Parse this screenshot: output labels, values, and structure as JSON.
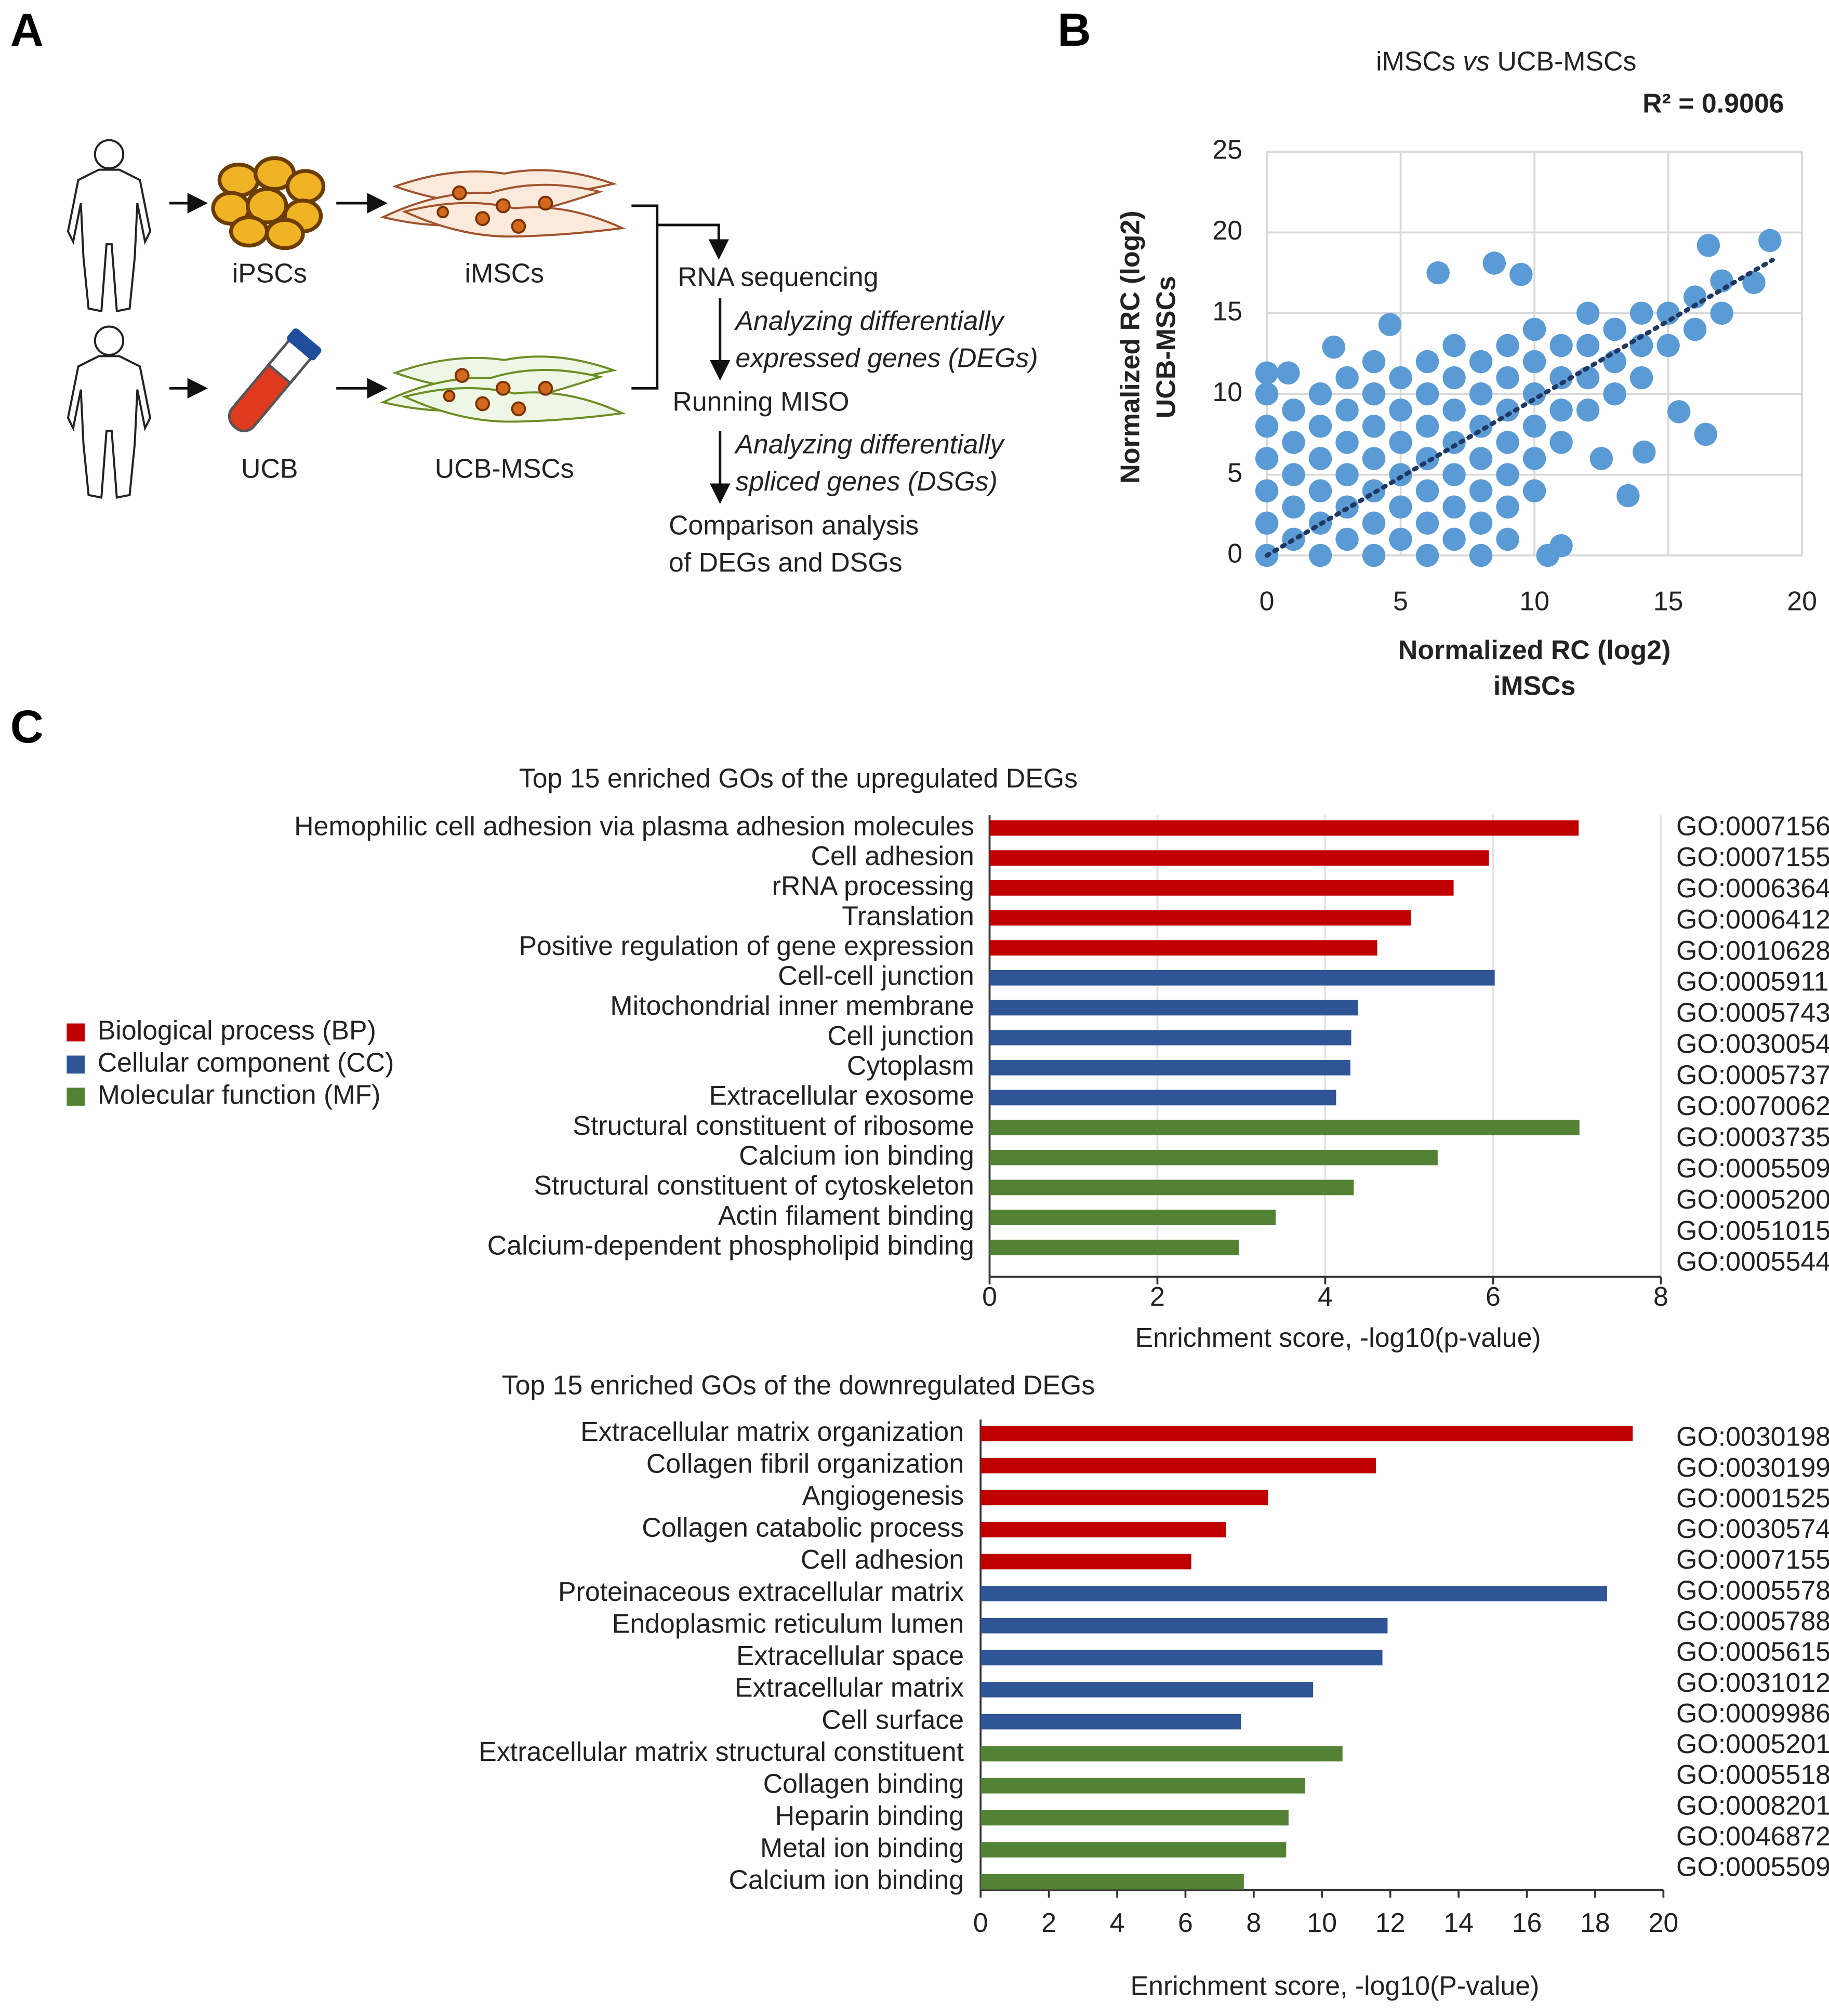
{
  "panel_labels": [
    "A",
    "B",
    "C"
  ],
  "diagram": {
    "sources": [
      "iPSCs",
      "iMSCs",
      "UCB",
      "UCB-MSCs"
    ],
    "pipeline": [
      "RNA sequencing",
      "Analyzing differentially",
      "expressed genes (DEGs)",
      "Running MISO",
      "Analyzing differentially",
      "spliced genes (DSGs)",
      "Comparison analysis",
      "of DEGs and DSGs"
    ]
  },
  "chart_data": [
    {
      "type": "scatter",
      "title": [
        "iMSCs",
        "vs",
        "UCB-MSCs"
      ],
      "annotation": "R² = 0.9006",
      "xlabel": [
        "Normalized RC (log2)",
        "iMSCs"
      ],
      "ylabel": [
        "Normalized RC (log2)",
        "UCB-MSCs"
      ],
      "xlim": [
        0,
        20
      ],
      "xticks": [
        0,
        5,
        10,
        15,
        20
      ],
      "ylim": [
        0,
        25
      ],
      "yticks": [
        0,
        5,
        10,
        15,
        20,
        25
      ],
      "grid": true,
      "color": "#5b9bd5",
      "x": [
        0,
        0,
        0,
        0,
        0,
        0,
        1,
        1,
        1,
        1,
        1,
        2,
        2,
        2,
        2,
        2,
        2,
        3,
        3,
        3,
        3,
        3,
        3,
        4,
        4,
        4,
        4,
        4,
        4,
        4,
        5,
        5,
        5,
        5,
        5,
        5,
        6,
        6,
        6,
        6,
        6,
        6,
        6,
        7,
        7,
        7,
        7,
        7,
        7,
        7,
        8,
        8,
        8,
        8,
        8,
        8,
        8,
        9,
        9,
        9,
        9,
        9,
        9,
        9,
        10,
        10,
        10,
        10,
        10,
        10,
        11,
        11,
        11,
        11,
        12,
        12,
        12,
        12,
        13,
        13,
        13,
        14,
        14,
        14,
        15,
        15,
        16,
        16,
        17,
        17,
        6.4,
        8.5,
        9.5,
        16.5,
        18.8,
        18.2,
        15.4,
        16.4,
        14.1,
        13.5,
        12.5,
        11,
        10.5,
        0,
        0.8,
        4.6,
        2.5
      ],
      "y": [
        0,
        2,
        4,
        6,
        8,
        10,
        1,
        3,
        5,
        7,
        9,
        0,
        2,
        4,
        6,
        8,
        10,
        1,
        3,
        5,
        7,
        9,
        11,
        0,
        2,
        4,
        6,
        8,
        10,
        12,
        1,
        3,
        5,
        7,
        9,
        11,
        0,
        2,
        4,
        6,
        8,
        10,
        12,
        1,
        3,
        5,
        7,
        9,
        11,
        13,
        0,
        2,
        4,
        6,
        8,
        10,
        12,
        1,
        3,
        5,
        7,
        9,
        11,
        13,
        4,
        6,
        8,
        10,
        12,
        14,
        7,
        9,
        11,
        13,
        9,
        11,
        13,
        15,
        10,
        12,
        14,
        11,
        13,
        15,
        13,
        15,
        14,
        16,
        15,
        17,
        17.5,
        18.1,
        17.4,
        19.2,
        19.5,
        16.9,
        8.9,
        7.5,
        6.4,
        3.7,
        6,
        0.6,
        0,
        11.3,
        11.3,
        14.3,
        12.9
      ],
      "trendline": {
        "x": [
          0,
          18.9
        ],
        "y": [
          0,
          18.3
        ],
        "color": "#1f3864"
      }
    },
    {
      "type": "bar",
      "title": "Top 15 enriched GOs of the upregulated DEGs",
      "xlabel": "Enrichment score, -log10(p-value)",
      "categories": [
        "Hemophilic cell adhesion via plasma adhesion molecules",
        "Cell adhesion",
        "rRNA processing",
        "Translation",
        "Positive regulation of gene expression",
        "Cell-cell junction",
        "Mitochondrial inner membrane",
        "Cell junction",
        "Cytoplasm",
        "Extracellular exosome",
        "Structural constituent of ribosome",
        "Calcium ion binding",
        "Structural constituent of cytoskeleton",
        "Actin filament binding",
        "Calcium-dependent phospholipid binding"
      ],
      "go_ids": [
        "GO:0007156",
        "GO:0007155",
        "GO:0006364",
        "GO:0006412",
        "GO:0010628",
        "GO:0005911",
        "GO:0005743",
        "GO:0030054",
        "GO:0005737",
        "GO:0070062",
        "GO:0003735",
        "GO:0005509",
        "GO:0005200",
        "GO:0051015",
        "GO:0005544"
      ],
      "series": [
        {
          "name": "Biological process (BP)",
          "color": "#c00000",
          "values": [
            7.02,
            5.95,
            5.53,
            5.02,
            4.62,
            null,
            null,
            null,
            null,
            null,
            null,
            null,
            null,
            null,
            null
          ]
        },
        {
          "name": "Cellular component (CC)",
          "color": "#2f5597",
          "values": [
            null,
            null,
            null,
            null,
            null,
            6.02,
            4.39,
            4.31,
            4.3,
            4.13,
            null,
            null,
            null,
            null,
            null
          ]
        },
        {
          "name": "Molecular function (MF)",
          "color": "#548235",
          "values": [
            null,
            null,
            null,
            null,
            null,
            null,
            null,
            null,
            null,
            null,
            7.03,
            5.34,
            4.34,
            3.41,
            2.97
          ]
        }
      ],
      "xlim": [
        0,
        8
      ],
      "xticks": [
        0,
        2,
        4,
        6,
        8
      ],
      "grid": true
    },
    {
      "type": "bar",
      "title": "Top 15 enriched GOs of the downregulated DEGs",
      "xlabel": "Enrichment score, -log10(P-value)",
      "categories": [
        "Extracellular matrix organization",
        "Collagen fibril organization",
        "Angiogenesis",
        "Collagen catabolic process",
        "Cell adhesion",
        "Proteinaceous extracellular matrix",
        "Endoplasmic reticulum lumen",
        "Extracellular space",
        "Extracellular matrix",
        "Cell surface",
        "Extracellular matrix structural constituent",
        "Collagen binding",
        "Heparin binding",
        "Metal ion binding",
        "Calcium ion binding"
      ],
      "go_ids": [
        "GO:0030198",
        "GO:0030199",
        "GO:0001525",
        "GO:0030574",
        "GO:0007155",
        "GO:0005578",
        "GO:0005788",
        "GO:0005615",
        "GO:0031012",
        "GO:0009986",
        "GO:0005201",
        "GO:0005518",
        "GO:0008201",
        "GO:0046872",
        "GO:0005509"
      ],
      "series": [
        {
          "color": "#c00000",
          "values": [
            19.1,
            11.58,
            8.42,
            7.18,
            6.17,
            null,
            null,
            null,
            null,
            null,
            null,
            null,
            null,
            null,
            null
          ]
        },
        {
          "color": "#2f5597",
          "values": [
            null,
            null,
            null,
            null,
            null,
            18.35,
            11.92,
            11.77,
            9.74,
            7.63,
            null,
            null,
            null,
            null,
            null
          ]
        },
        {
          "color": "#548235",
          "values": [
            null,
            null,
            null,
            null,
            null,
            null,
            null,
            null,
            null,
            null,
            10.6,
            9.51,
            9.02,
            8.95,
            7.71
          ]
        }
      ],
      "xlim": [
        0,
        20
      ],
      "xticks": [
        0,
        2,
        4,
        6,
        8,
        10,
        12,
        14,
        16,
        18,
        20
      ],
      "grid": false
    }
  ]
}
